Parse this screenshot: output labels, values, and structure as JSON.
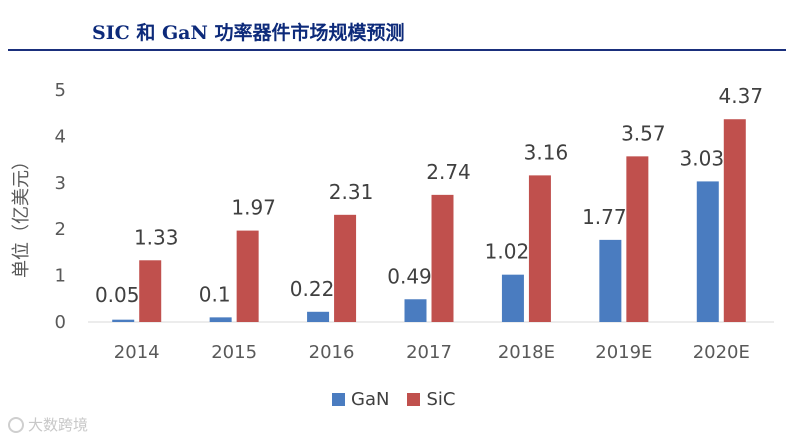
{
  "header": {
    "title": "SIC 和 GaN 功率器件市场规模预测"
  },
  "colors": {
    "gan": "#4a7cc0",
    "sic": "#c0504d",
    "title": "#0d2a7a",
    "rule": "#1a2f7c"
  },
  "watermark": {
    "text": "大数跨境"
  },
  "chart_data": {
    "type": "bar",
    "categories": [
      "2014",
      "2015",
      "2016",
      "2017",
      "2018E",
      "2019E",
      "2020E"
    ],
    "series": [
      {
        "name": "GaN",
        "values": [
          0.05,
          0.1,
          0.22,
          0.49,
          1.02,
          1.77,
          3.03
        ],
        "labels": [
          "0.05",
          "0.1",
          "0.22",
          "0.49",
          "1.02",
          "1.77",
          "3.03"
        ]
      },
      {
        "name": "SiC",
        "values": [
          1.33,
          1.97,
          2.31,
          2.74,
          3.16,
          3.57,
          4.37
        ],
        "labels": [
          "1.33",
          "1.97",
          "2.31",
          "2.74",
          "3.16",
          "3.57",
          "4.37"
        ]
      }
    ],
    "ylabel": "单位（亿美元）",
    "ylim": [
      0,
      5
    ],
    "yticks": [
      "0",
      "1",
      "2",
      "3",
      "4",
      "5"
    ],
    "grid": false,
    "legend": "bottom-center"
  }
}
